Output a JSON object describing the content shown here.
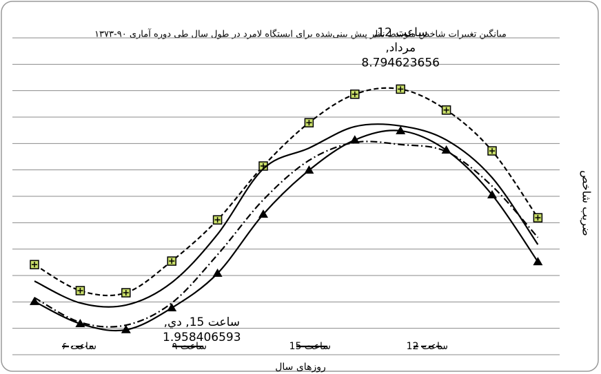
{
  "chart_data": {
    "type": "line",
    "title": "میانگین تغییرات شاخص متوسط نظر پیش بینی‌شده برای ایستگاه لامرد در طول سال طی دوره آماری ۹۰-۱۳۷۳",
    "x_label": "روزهای سال",
    "y_label": "ضریب شاخص",
    "categories": [
      null,
      null,
      "دي",
      null,
      null,
      null,
      null,
      null,
      "مرداد",
      null,
      null,
      null
    ],
    "ylim": [
      1.25,
      10.25
    ],
    "yticks": [
      1.25,
      2,
      2.75,
      3.5,
      4.25,
      5,
      5.75,
      6.5,
      7.25,
      8,
      8.75,
      9.5,
      10.25
    ],
    "grid": true,
    "series": [
      {
        "name": "ساعت 12",
        "color": "#000000",
        "dash": "dashed",
        "marker": "square-plus",
        "values": [
          3.81,
          3.07,
          3.01,
          3.91,
          5.08,
          6.61,
          7.84,
          8.65,
          8.794623656,
          8.2,
          7.04,
          5.14
        ]
      },
      {
        "name": "ساعت 15",
        "color": "#000000",
        "dash": "solid",
        "marker": "triangle",
        "values": [
          2.76,
          2.13,
          1.958406593,
          2.58,
          3.56,
          5.24,
          6.49,
          7.35,
          7.61,
          7.06,
          5.79,
          3.89
        ]
      },
      {
        "name": "ساعت ۹",
        "color": "#000000",
        "dash": "solid",
        "marker": "none",
        "values": [
          3.34,
          2.72,
          2.66,
          3.3,
          4.67,
          6.53,
          7.12,
          7.73,
          7.75,
          7.35,
          6.28,
          4.38
        ]
      },
      {
        "name": "ساعت ۶",
        "color": "#000000",
        "dash": "dashdot",
        "marker": "none",
        "values": [
          2.87,
          2.17,
          2.09,
          2.72,
          4.09,
          5.65,
          6.77,
          7.28,
          7.22,
          7.02,
          6.04,
          4.58
        ]
      }
    ],
    "annotations": [
      {
        "series": 0,
        "index": 8,
        "lines": [
          "ساعت 12,",
          "مرداد,",
          "8.794623656"
        ]
      },
      {
        "series": 1,
        "index": 2,
        "lines": [
          "ساعت 15, دي,",
          "1.958406593"
        ]
      }
    ]
  }
}
